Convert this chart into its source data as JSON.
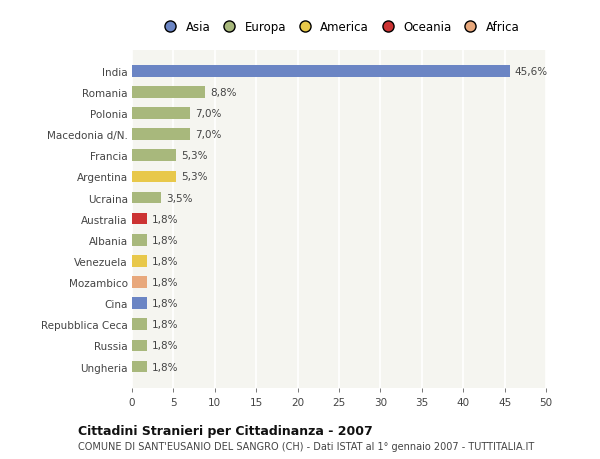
{
  "categories": [
    "Ungheria",
    "Russia",
    "Repubblica Ceca",
    "Cina",
    "Mozambico",
    "Venezuela",
    "Albania",
    "Australia",
    "Ucraina",
    "Argentina",
    "Francia",
    "Macedonia d/N.",
    "Polonia",
    "Romania",
    "India"
  ],
  "values": [
    1.8,
    1.8,
    1.8,
    1.8,
    1.8,
    1.8,
    1.8,
    1.8,
    3.5,
    5.3,
    5.3,
    7.0,
    7.0,
    8.8,
    45.6
  ],
  "labels": [
    "1,8%",
    "1,8%",
    "1,8%",
    "1,8%",
    "1,8%",
    "1,8%",
    "1,8%",
    "1,8%",
    "3,5%",
    "5,3%",
    "5,3%",
    "7,0%",
    "7,0%",
    "8,8%",
    "45,6%"
  ],
  "colors": [
    "#a8b87c",
    "#a8b87c",
    "#a8b87c",
    "#6b85c4",
    "#e8a87c",
    "#e8c84a",
    "#a8b87c",
    "#cc3333",
    "#a8b87c",
    "#e8c84a",
    "#a8b87c",
    "#a8b87c",
    "#a8b87c",
    "#a8b87c",
    "#6b85c4"
  ],
  "legend": [
    {
      "label": "Asia",
      "color": "#6b85c4"
    },
    {
      "label": "Europa",
      "color": "#a8b87c"
    },
    {
      "label": "America",
      "color": "#e8c84a"
    },
    {
      "label": "Oceania",
      "color": "#cc3333"
    },
    {
      "label": "Africa",
      "color": "#e8a87c"
    }
  ],
  "xlim": [
    0,
    50
  ],
  "xticks": [
    0,
    5,
    10,
    15,
    20,
    25,
    30,
    35,
    40,
    45,
    50
  ],
  "title": "Cittadini Stranieri per Cittadinanza - 2007",
  "subtitle": "COMUNE DI SANT'EUSANIO DEL SANGRO (CH) - Dati ISTAT al 1° gennaio 2007 - TUTTITALIA.IT",
  "bg_color": "#ffffff",
  "plot_bg_color": "#f5f5f0",
  "grid_color": "#ffffff",
  "bar_height": 0.55
}
